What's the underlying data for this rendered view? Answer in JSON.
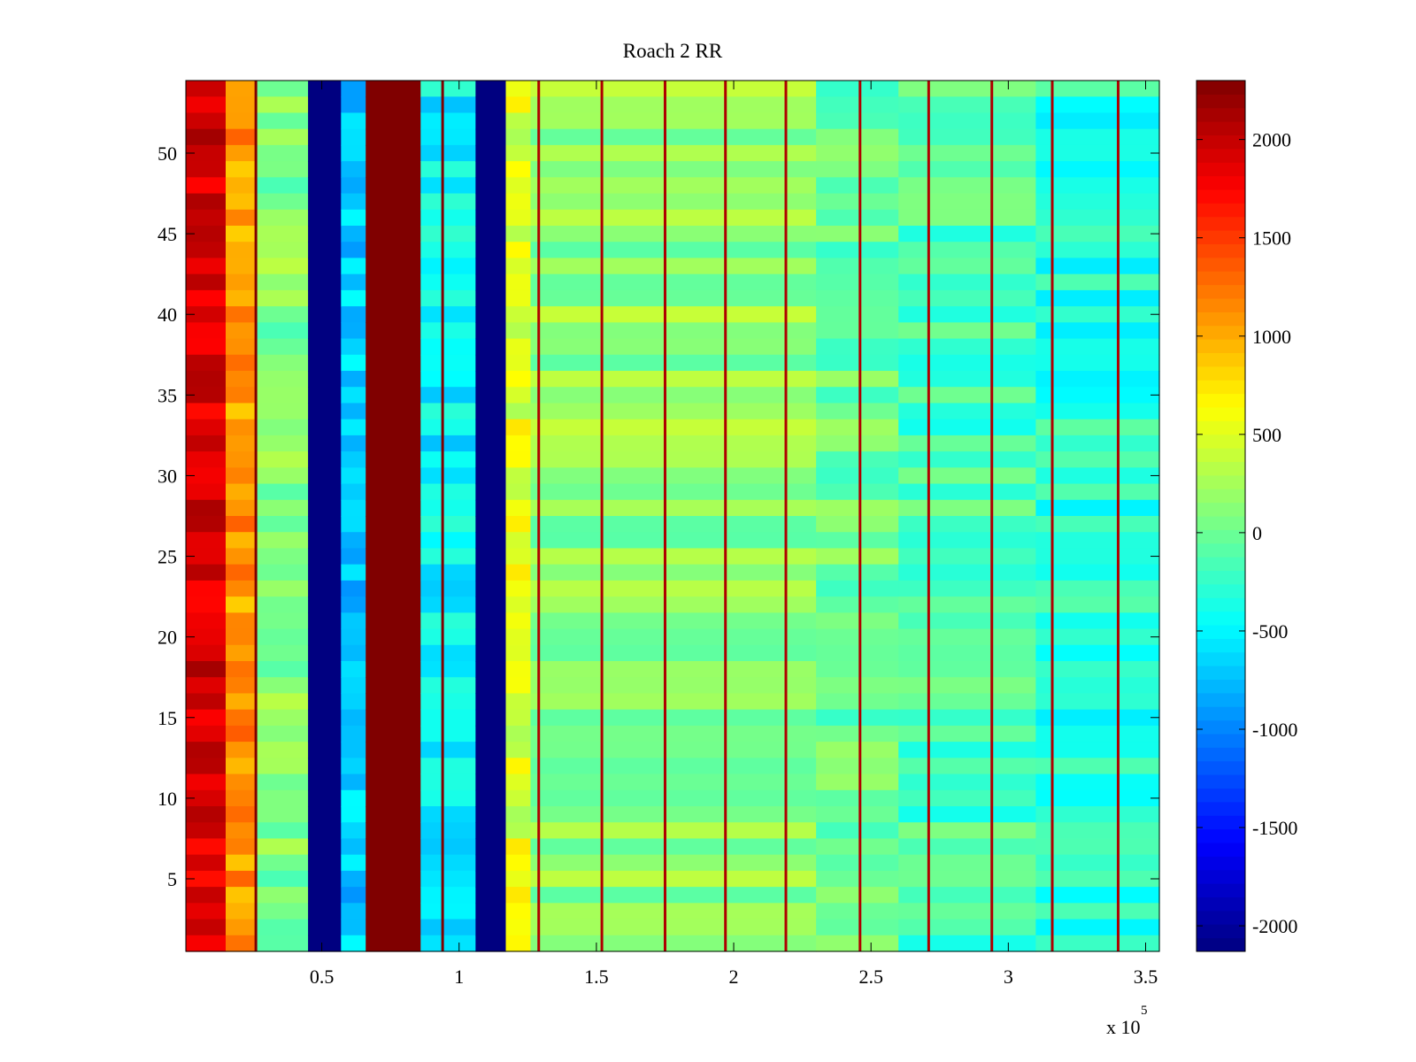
{
  "chart_data": {
    "type": "heatmap",
    "title": "Roach 2 RR",
    "xlabel": "",
    "ylabel": "",
    "x_exponent_label": "x 10",
    "x_exponent": "5",
    "xlim": [
      0.005,
      3.55
    ],
    "ylim": [
      0.5,
      54.5
    ],
    "x_ticks": [
      {
        "value": 0.5,
        "label": "0.5"
      },
      {
        "value": 1.0,
        "label": "1"
      },
      {
        "value": 1.5,
        "label": "1.5"
      },
      {
        "value": 2.0,
        "label": "2"
      },
      {
        "value": 2.5,
        "label": "2.5"
      },
      {
        "value": 3.0,
        "label": "3"
      },
      {
        "value": 3.5,
        "label": "3.5"
      }
    ],
    "y_ticks": [
      {
        "value": 5,
        "label": "5"
      },
      {
        "value": 10,
        "label": "10"
      },
      {
        "value": 15,
        "label": "15"
      },
      {
        "value": 20,
        "label": "20"
      },
      {
        "value": 25,
        "label": "25"
      },
      {
        "value": 30,
        "label": "30"
      },
      {
        "value": 35,
        "label": "35"
      },
      {
        "value": 40,
        "label": "40"
      },
      {
        "value": 45,
        "label": "45"
      },
      {
        "value": 50,
        "label": "50"
      }
    ],
    "colorbar": {
      "colormap": "jet",
      "range": [
        -2130,
        2300
      ],
      "ticks": [
        {
          "value": 2000,
          "label": "2000"
        },
        {
          "value": 1500,
          "label": "1500"
        },
        {
          "value": 1000,
          "label": "1000"
        },
        {
          "value": 500,
          "label": "500"
        },
        {
          "value": 0,
          "label": "0"
        },
        {
          "value": -500,
          "label": "-500"
        },
        {
          "value": -1000,
          "label": "-1000"
        },
        {
          "value": -1500,
          "label": "-1500"
        },
        {
          "value": -2000,
          "label": "-2000"
        }
      ]
    },
    "rows": 54,
    "column_bands": [
      {
        "x_start": 0.005,
        "x_end": 0.15,
        "value": 1900
      },
      {
        "x_start": 0.15,
        "x_end": 0.26,
        "value": 1100
      },
      {
        "x_start": 0.26,
        "x_end": 0.45,
        "value": 100
      },
      {
        "x_start": 0.45,
        "x_end": 0.57,
        "value": -2130
      },
      {
        "x_start": 0.57,
        "x_end": 0.66,
        "value": -700
      },
      {
        "x_start": 0.66,
        "x_end": 0.86,
        "value": 2300
      },
      {
        "x_start": 0.86,
        "x_end": 1.06,
        "value": -500
      },
      {
        "x_start": 1.06,
        "x_end": 1.17,
        "value": -2130
      },
      {
        "x_start": 1.17,
        "x_end": 1.26,
        "value": 500
      },
      {
        "x_start": 1.26,
        "x_end": 2.3,
        "value": 150
      },
      {
        "x_start": 2.3,
        "x_end": 2.6,
        "value": 0
      },
      {
        "x_start": 2.6,
        "x_end": 3.1,
        "value": -150
      },
      {
        "x_start": 3.1,
        "x_end": 3.55,
        "value": -300
      }
    ],
    "vertical_lines": [
      {
        "x": 0.26,
        "value": 2300
      },
      {
        "x": 0.94,
        "value": 2300
      },
      {
        "x": 1.29,
        "value": 2100
      },
      {
        "x": 1.52,
        "value": 2100
      },
      {
        "x": 1.75,
        "value": 2100
      },
      {
        "x": 1.97,
        "value": 2100
      },
      {
        "x": 2.19,
        "value": 2100
      },
      {
        "x": 2.46,
        "value": 2100
      },
      {
        "x": 2.71,
        "value": 2100
      },
      {
        "x": 2.94,
        "value": 2100
      },
      {
        "x": 3.16,
        "value": 2100
      },
      {
        "x": 3.4,
        "value": 2100
      }
    ]
  }
}
